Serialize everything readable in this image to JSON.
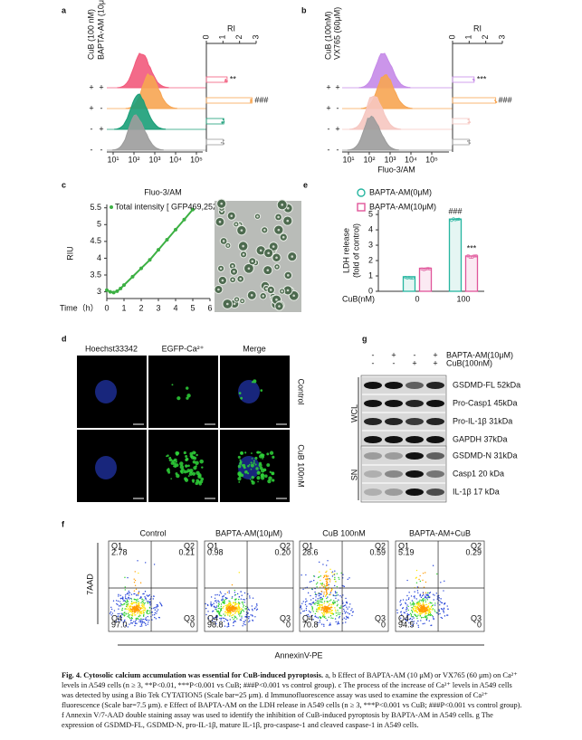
{
  "panels": {
    "a": {
      "letter": "a",
      "factors": [
        "CuB (100 nM)",
        "BAPTA-AM (10μM)"
      ],
      "ri_title": "RI",
      "ri_ticks": [
        0,
        1,
        2,
        3
      ],
      "x_ticks": [
        "10¹",
        "10²",
        "10³",
        "10⁴",
        "10⁵"
      ],
      "rows": [
        {
          "signs": [
            "+",
            "+"
          ],
          "color": "#f25a7c",
          "ri": 1.25,
          "sig": "**"
        },
        {
          "signs": [
            "+",
            "-"
          ],
          "color": "#f7a552",
          "ri": 2.75,
          "sig": "###"
        },
        {
          "signs": [
            "-",
            "+"
          ],
          "color": "#1a9e78",
          "ri": 1.05
        },
        {
          "signs": [
            "-",
            "-"
          ],
          "color": "#9c9c9c",
          "ri": 1.0
        }
      ]
    },
    "b": {
      "letter": "b",
      "factors": [
        "CuB (100nM)",
        "VX765 (60μM)"
      ],
      "ri_title": "RI",
      "ri_ticks": [
        0,
        1,
        2,
        3
      ],
      "x_ticks": [
        "10¹",
        "10²",
        "10³",
        "10⁴",
        "10⁵"
      ],
      "x_title": "Fluo-3/AM",
      "rows": [
        {
          "signs": [
            "+",
            "+"
          ],
          "color": "#c58ae8",
          "ri": 1.3,
          "sig": "***"
        },
        {
          "signs": [
            "+",
            "-"
          ],
          "color": "#f7a552",
          "ri": 2.6,
          "sig": "###"
        },
        {
          "signs": [
            "-",
            "+"
          ],
          "color": "#f6c6c0",
          "ri": 1.0
        },
        {
          "signs": [
            "-",
            "-"
          ],
          "color": "#9c9c9c",
          "ri": 1.0
        }
      ]
    },
    "c": {
      "letter": "c",
      "title": "Fluo-3/AM",
      "ylabel": "RIU",
      "xlabel": "Time（h）",
      "series_name": "Total intensity [ GFP469,252]-A2",
      "color": "#3cb043",
      "x": [
        0,
        0.2,
        0.4,
        0.6,
        0.8,
        1,
        1.5,
        2,
        2.5,
        3,
        3.5,
        4,
        4.5,
        5
      ],
      "values": [
        3.05,
        3.0,
        2.98,
        3.02,
        3.1,
        3.2,
        3.45,
        3.7,
        3.95,
        4.25,
        4.55,
        4.85,
        5.15,
        5.45
      ],
      "xlim": [
        0,
        6
      ],
      "xticks": [
        0,
        1,
        2,
        3,
        4,
        5,
        6
      ],
      "ylim": [
        2.8,
        5.6
      ],
      "yticks": [
        3.0,
        3.5,
        4.0,
        4.5,
        5.0,
        5.5
      ]
    },
    "d": {
      "letter": "d",
      "columns": [
        "Hoechst33342",
        "EGFP-Ca²⁺",
        "Merge"
      ],
      "rows": [
        "Control",
        "CuB 100nM"
      ]
    },
    "e": {
      "letter": "e",
      "ylabel": [
        "LDH release",
        "(fold of control)"
      ],
      "xlabel": "CuB(nM)",
      "categories": [
        "0",
        "100"
      ],
      "series": [
        {
          "name": "BAPTA-AM(0μM)",
          "color": "#26b5a0",
          "values": [
            0.95,
            4.7
          ]
        },
        {
          "name": "BAPTA-AM(10μM)",
          "color": "#e0559a",
          "values": [
            1.5,
            2.3
          ]
        }
      ],
      "annotations": [
        "###",
        "***"
      ],
      "ylim": [
        0,
        5.3
      ],
      "yticks": [
        0,
        1,
        2,
        3,
        4,
        5
      ]
    },
    "f": {
      "letter": "f",
      "ylabel": "7AAD",
      "xlabel": "AnnexinV-PE",
      "plots": [
        {
          "title": "Control",
          "q": [
            "2.78",
            "0.21",
            "0",
            "97.0"
          ]
        },
        {
          "title": "BAPTA-AM(10μM)",
          "q": [
            "0.98",
            "0.20",
            "0",
            "98.8"
          ]
        },
        {
          "title": "CuB 100nM",
          "q": [
            "28.6",
            "0.59",
            "0",
            "70.8"
          ]
        },
        {
          "title": "BAPTA-AM+CuB",
          "q": [
            "5.19",
            "0.29",
            "0",
            "94.5"
          ]
        }
      ],
      "quadrants": [
        "Q1",
        "Q2",
        "Q3",
        "Q4"
      ]
    },
    "g": {
      "letter": "g",
      "treatments": [
        {
          "name": "BAPTA-AM(10μM)",
          "signs": [
            "-",
            "+",
            "-",
            "+"
          ]
        },
        {
          "name": "CuB(100nM)",
          "signs": [
            "-",
            "-",
            "+",
            "+"
          ]
        }
      ],
      "groups": [
        {
          "name": "WCL",
          "bands": [
            "GSDMD-FL 52kDa",
            "Pro-Casp1 45kDa",
            "Pro-IL-1β 31kDa",
            "GAPDH 37kDa"
          ]
        },
        {
          "name": "SN",
          "bands": [
            "GSDMD-N 31kDa",
            "Casp1 20 kDa",
            "IL-1β 17 kDa"
          ]
        }
      ]
    }
  },
  "caption": {
    "bold": "Fig. 4. Cytosolic calcium accumulation was essential for CuB-induced pyroptosis.",
    "text": " a, b Effect of BAPTA-AM (10 μM) or VX765 (60 μm) on Ca²⁺ levels in A549 cells (n ≥ 3, **P<0.01, ***P<0.001 vs CuB; ###P<0.001 vs control group). c The process of the increase of Ca²⁺ levels in A549 cells was detected by using a Bio Tek CYTATION5 (Scale bar=25 μm). d Immunofluorescence assay was used to examine the expression of Ca²⁺ fluorescence (Scale bar=7.5 μm). e Effect of BAPTA-AM on the LDH release in A549 cells (n ≥ 3, ***P<0.001 vs CuB; ###P<0.001 vs control group). f Annexin V/7-AAD double staining assay was used to identify the inhibition of CuB-induced pyroptosis by BAPTA-AM in A549 cells. g The expression of GSDMD-FL, GSDMD-N, pro-IL-1β, mature IL-1β, pro-caspase-1 and cleaved caspase-1 in A549 cells."
  }
}
